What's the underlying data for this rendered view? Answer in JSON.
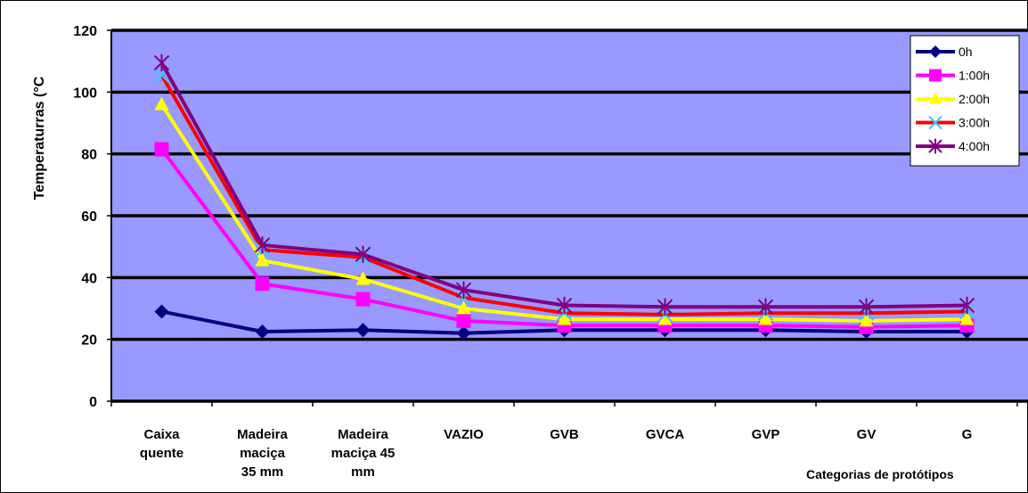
{
  "chart_data": {
    "type": "line",
    "ylabel": "Temperaturras (°C",
    "xlabel": "Categorias de protótipos",
    "ylim": [
      0,
      120
    ],
    "yticks": [
      0,
      20,
      40,
      60,
      80,
      100,
      120
    ],
    "grid": true,
    "legend_position": "top-right",
    "plot_background": "#9999ff",
    "categories": [
      [
        "Caixa",
        "quente"
      ],
      [
        "Madeira",
        "maciça",
        "35 mm"
      ],
      [
        "Madeira",
        "maciça 45",
        "mm"
      ],
      [
        "VAZIO"
      ],
      [
        "GVB"
      ],
      [
        "GVCA"
      ],
      [
        "GVP"
      ],
      [
        "GV"
      ],
      [
        "G"
      ]
    ],
    "series": [
      {
        "name": "0h",
        "color": "#000080",
        "marker": "diamond",
        "values": [
          29,
          22.5,
          23,
          22,
          23,
          23,
          23,
          22.5,
          22.5
        ]
      },
      {
        "name": "1:00h",
        "color": "#ff00ff",
        "marker": "square",
        "values": [
          81.5,
          38,
          33,
          26,
          24.5,
          24.5,
          24.5,
          24,
          24.5
        ]
      },
      {
        "name": "2:00h",
        "color": "#ffff00",
        "marker": "triangle",
        "values": [
          96,
          45.5,
          39.5,
          30,
          26.5,
          26.5,
          26.5,
          26,
          26.5
        ]
      },
      {
        "name": "3:00h",
        "color": "#ff0000",
        "marker": "x",
        "values": [
          105.5,
          49,
          46.5,
          33.5,
          28.5,
          28,
          28.5,
          28.5,
          29
        ]
      },
      {
        "name": "4:00h",
        "color": "#800080",
        "marker": "star",
        "values": [
          109.5,
          50.5,
          47.5,
          36,
          31,
          30.5,
          30.5,
          30.5,
          31
        ]
      }
    ]
  }
}
